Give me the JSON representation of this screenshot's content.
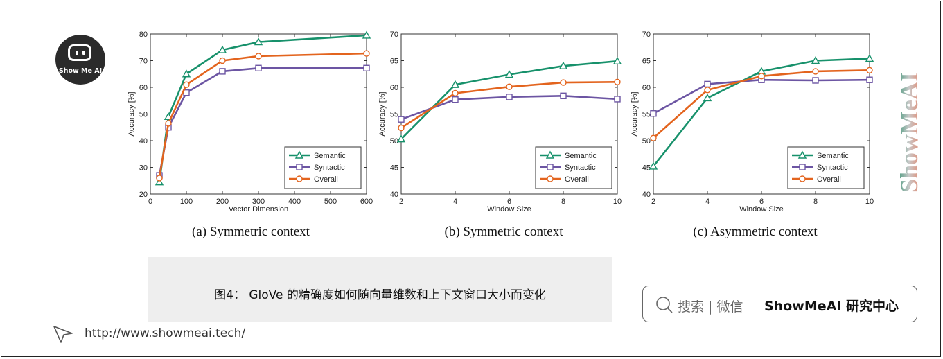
{
  "logo": {
    "text": "Show Me AI",
    "icon": "robot-face-icon"
  },
  "colors": {
    "semantic": "#17916b",
    "syntactic": "#6c55a3",
    "overall": "#e3641e",
    "axis": "#333333"
  },
  "chart_data": [
    {
      "type": "line",
      "caption": "(a)  Symmetric context",
      "xlabel": "Vector Dimension",
      "ylabel": "Accuracy [%]",
      "xlim": [
        0,
        600
      ],
      "ylim": [
        20,
        80
      ],
      "xticks": [
        0,
        100,
        200,
        300,
        400,
        500,
        600
      ],
      "yticks": [
        20,
        30,
        40,
        50,
        60,
        70,
        80
      ],
      "grid": false,
      "legend_position": "bottom-right",
      "x": [
        25,
        50,
        100,
        200,
        300,
        600
      ],
      "series": [
        {
          "name": "Semantic",
          "marker": "triangle",
          "values": [
            24.5,
            49,
            65,
            74,
            77,
            79.5
          ]
        },
        {
          "name": "Syntactic",
          "marker": "square",
          "values": [
            27,
            45,
            58,
            66,
            67.2,
            67.2
          ]
        },
        {
          "name": "Overall",
          "marker": "circle",
          "values": [
            26,
            46.5,
            61,
            70,
            71.7,
            72.7
          ]
        }
      ]
    },
    {
      "type": "line",
      "caption": "(b)  Symmetric context",
      "xlabel": "Window Size",
      "ylabel": "Accuracy [%]",
      "xlim": [
        2,
        10
      ],
      "ylim": [
        40,
        70
      ],
      "xticks": [
        2,
        4,
        6,
        8,
        10
      ],
      "yticks": [
        40,
        45,
        50,
        55,
        60,
        65,
        70
      ],
      "grid": false,
      "legend_position": "bottom-right",
      "x": [
        2,
        4,
        6,
        8,
        10
      ],
      "series": [
        {
          "name": "Semantic",
          "marker": "triangle",
          "values": [
            50.3,
            60.5,
            62.4,
            64,
            64.9
          ]
        },
        {
          "name": "Syntactic",
          "marker": "square",
          "values": [
            54,
            57.7,
            58.2,
            58.4,
            57.8
          ]
        },
        {
          "name": "Overall",
          "marker": "circle",
          "values": [
            52.4,
            58.9,
            60.1,
            60.9,
            61
          ]
        }
      ]
    },
    {
      "type": "line",
      "caption": "(c)  Asymmetric context",
      "xlabel": "Window Size",
      "ylabel": "Accuracy [%]",
      "xlim": [
        2,
        10
      ],
      "ylim": [
        40,
        70
      ],
      "xticks": [
        2,
        4,
        6,
        8,
        10
      ],
      "yticks": [
        40,
        45,
        50,
        55,
        60,
        65,
        70
      ],
      "grid": false,
      "legend_position": "bottom-right",
      "x": [
        2,
        4,
        6,
        8,
        10
      ],
      "series": [
        {
          "name": "Semantic",
          "marker": "triangle",
          "values": [
            45.2,
            58,
            63,
            65,
            65.4
          ]
        },
        {
          "name": "Syntactic",
          "marker": "square",
          "values": [
            55.1,
            60.6,
            61.4,
            61.3,
            61.4
          ]
        },
        {
          "name": "Overall",
          "marker": "circle",
          "values": [
            50.5,
            59.5,
            62.1,
            63,
            63.2
          ]
        }
      ]
    }
  ],
  "figure_title": "图4： GloVe 的精确度如何随向量维数和上下文窗口大小而变化",
  "search": {
    "icon": "search-icon",
    "hint": "搜索 | 微信",
    "brand": "ShowMeAI 研究中心"
  },
  "watermark": {
    "text": "ShowMeAI"
  },
  "footer": {
    "icon": "cursor-arrow-icon",
    "url": "http://www.showmeai.tech/"
  }
}
